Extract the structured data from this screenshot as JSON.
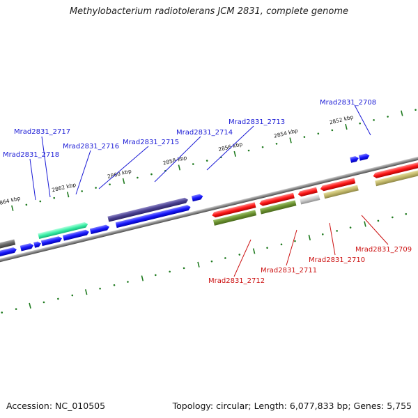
{
  "title": "Methylobacterium radiotolerans JCM 2831, complete genome",
  "footer": {
    "accession": "Accession: NC_010505",
    "summary": "Topology: circular; Length: 6,077,833 bp; Genes: 5,755"
  },
  "colors": {
    "backbone": "#8a8a8a",
    "tick": "#1e7a1e",
    "label_forward": "#1a1ad6",
    "label_reverse": "#cc1111"
  },
  "scale_labels": [
    "2852 kbp",
    "2854 kbp",
    "2856 kbp",
    "2858 kbp",
    "2860 kbp",
    "2862 kbp",
    "2864 kbp"
  ],
  "gene_labels": {
    "forward": [
      "Mrad2831_2708",
      "Mrad2831_2713",
      "Mrad2831_2714",
      "Mrad2831_2715",
      "Mrad2831_2716",
      "Mrad2831_2717",
      "Mrad2831_2718"
    ],
    "reverse": [
      "Mrad2831_2709",
      "Mrad2831_2710",
      "Mrad2831_2711",
      "Mrad2831_2712"
    ]
  }
}
